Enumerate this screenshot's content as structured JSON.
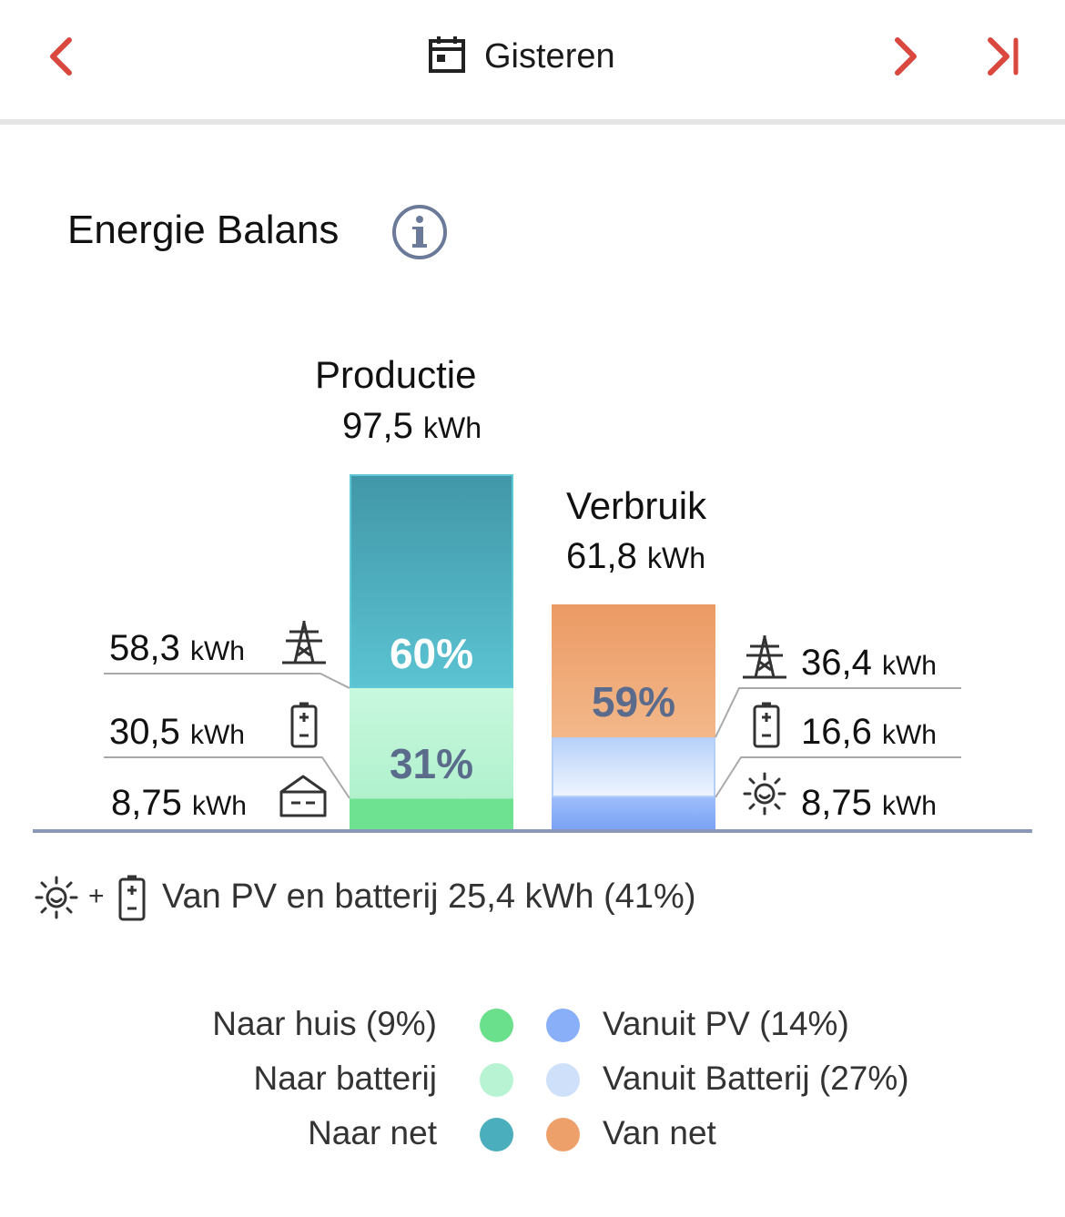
{
  "header": {
    "title": "Gisteren",
    "icons": [
      "chevron-left-icon",
      "calendar-icon",
      "chevron-right-icon",
      "skip-to-end-icon"
    ]
  },
  "section": {
    "title": "Energie Balans",
    "info_icon": "info-icon"
  },
  "production": {
    "label": "Productie",
    "value": "97,5",
    "unit": "kWh",
    "segments": [
      {
        "name": "Naar net",
        "pct_label": "60%",
        "color": "#4aaebd"
      },
      {
        "name": "Naar batterij",
        "pct_label": "31%",
        "color": "#b8f4d4"
      },
      {
        "name": "Naar huis",
        "pct_label": "",
        "color": "#6be08c"
      }
    ],
    "side_values": [
      {
        "value": "58,3",
        "unit": "kWh",
        "icon": "power-pylon-icon"
      },
      {
        "value": "30,5",
        "unit": "kWh",
        "icon": "battery-icon"
      },
      {
        "value": "8,75",
        "unit": "kWh",
        "icon": "house-icon"
      }
    ]
  },
  "consumption": {
    "label": "Verbruik",
    "value": "61,8",
    "unit": "kWh",
    "segments": [
      {
        "name": "Van net",
        "pct_label": "59%",
        "color": "#eea06a"
      },
      {
        "name": "Vanuit Batterij",
        "pct_label": "",
        "color": "#cfe0fb"
      },
      {
        "name": "Vanuit PV",
        "pct_label": "",
        "color": "#88aff8"
      }
    ],
    "side_values": [
      {
        "value": "36,4",
        "unit": "kWh",
        "icon": "power-pylon-icon"
      },
      {
        "value": "16,6",
        "unit": "kWh",
        "icon": "battery-icon"
      },
      {
        "value": "8,75",
        "unit": "kWh",
        "icon": "sun-icon"
      }
    ]
  },
  "summary": {
    "plus": "+",
    "text": "Van PV en batterij 25,4 kWh (41%)"
  },
  "legend": {
    "left": [
      {
        "label": "Naar huis (9%)",
        "color": "#6be08c"
      },
      {
        "label": "Naar batterij",
        "color": "#b8f4d4"
      },
      {
        "label": "Naar net",
        "color": "#4aaebd"
      }
    ],
    "right": [
      {
        "label": "Vanuit PV (14%)",
        "color": "#88aff8"
      },
      {
        "label": "Vanuit Batterij (27%)",
        "color": "#cfe0fb"
      },
      {
        "label": "Van net",
        "color": "#eea06a"
      }
    ]
  },
  "colors": {
    "accent": "#d9473f",
    "baseline": "#8a97b8"
  }
}
